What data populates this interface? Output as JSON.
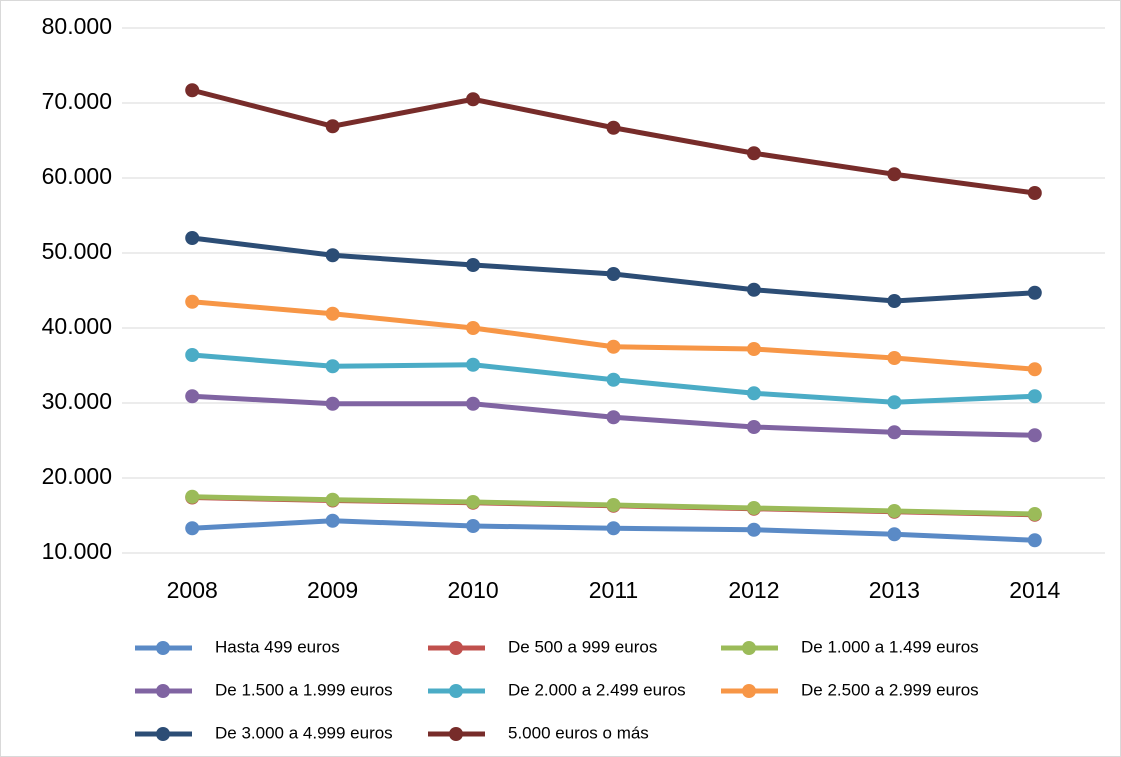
{
  "chart_data": {
    "type": "line",
    "categories": [
      "2008",
      "2009",
      "2010",
      "2011",
      "2012",
      "2013",
      "2014"
    ],
    "series": [
      {
        "name": "Hasta 499 euros",
        "color": "#5a8ac6",
        "values": [
          13300,
          14300,
          13600,
          13300,
          13100,
          12500,
          11700
        ]
      },
      {
        "name": "De 500 a 999 euros",
        "color": "#c0504d",
        "values": [
          17400,
          17000,
          16700,
          16300,
          15900,
          15500,
          15100
        ]
      },
      {
        "name": "De 1.000 a 1.499 euros",
        "color": "#9bbb59",
        "values": [
          17500,
          17100,
          16800,
          16400,
          16000,
          15600,
          15200
        ]
      },
      {
        "name": "De 1.500 a 1.999 euros",
        "color": "#8064a2",
        "values": [
          30900,
          29900,
          29900,
          28100,
          26800,
          26100,
          25700
        ]
      },
      {
        "name": "De 2.000 a 2.499 euros",
        "color": "#4bacc6",
        "values": [
          36400,
          34900,
          35100,
          33100,
          31300,
          30100,
          30900
        ]
      },
      {
        "name": "De 2.500 a 2.999 euros",
        "color": "#f79646",
        "values": [
          43500,
          41900,
          40000,
          37500,
          37200,
          36000,
          34500
        ]
      },
      {
        "name": "De 3.000 a 4.999 euros",
        "color": "#2c4d75",
        "values": [
          52000,
          49700,
          48400,
          47200,
          45100,
          43600,
          44700
        ]
      },
      {
        "name": "5.000 euros o más",
        "color": "#772c2a",
        "values": [
          71700,
          66900,
          70500,
          66700,
          63300,
          60500,
          58000
        ]
      }
    ],
    "ylim": [
      10000,
      80000
    ],
    "yticks": [
      {
        "value": 10000,
        "label": "10.000"
      },
      {
        "value": 20000,
        "label": "20.000"
      },
      {
        "value": 30000,
        "label": "30.000"
      },
      {
        "value": 40000,
        "label": "40.000"
      },
      {
        "value": 50000,
        "label": "50.000"
      },
      {
        "value": 60000,
        "label": "60.000"
      },
      {
        "value": 70000,
        "label": "70.000"
      },
      {
        "value": 80000,
        "label": "80.000"
      }
    ],
    "grid": true,
    "legend": "bottom"
  }
}
